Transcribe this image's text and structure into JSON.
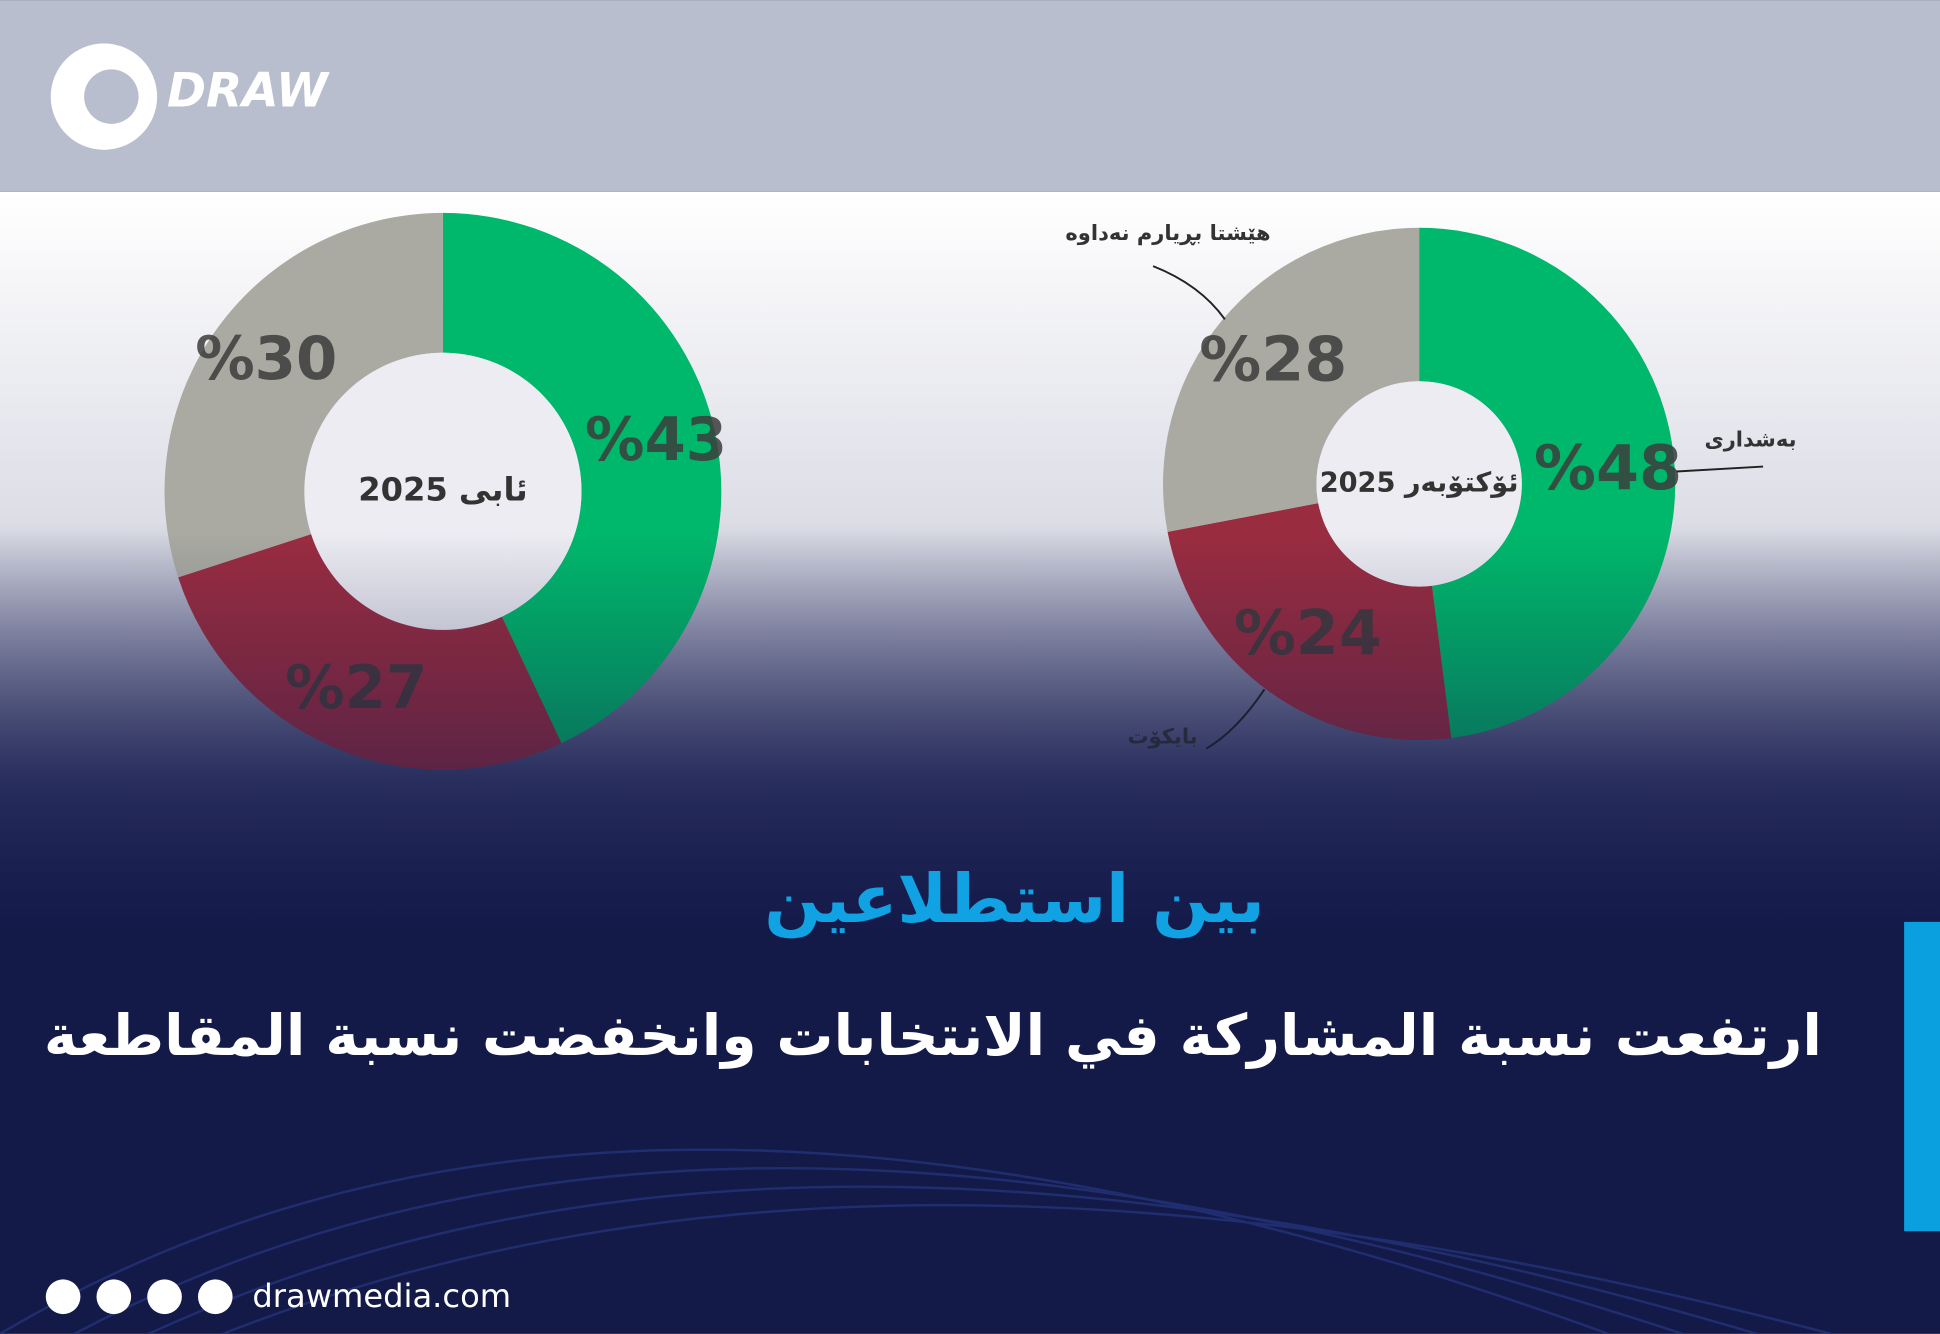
{
  "header": {
    "logo": "DRAW"
  },
  "chart_data": [
    {
      "type": "pie",
      "center_label": "ئابی 2025",
      "categories": [
        null,
        null,
        null
      ],
      "values": [
        43,
        27,
        30
      ],
      "value_labels": [
        "%43",
        "%27",
        "%30"
      ],
      "colors": [
        "#00b86b",
        "#9a2c40",
        "#aaaaa2"
      ]
    },
    {
      "type": "pie",
      "center_label": "ئۆکتۆبەر 2025",
      "categories": [
        "بەشداری",
        "بایکۆت",
        "هێشتا بڕیارم نەداوە"
      ],
      "values": [
        48,
        24,
        28
      ],
      "value_labels": [
        "%48",
        "%24",
        "%28"
      ],
      "colors": [
        "#00b86b",
        "#9a2c40",
        "#aaaaa2"
      ]
    }
  ],
  "headline": {
    "kicker": "بين استطلاعين",
    "title": "ارتفعت نسبة المشاركة في الانتخابات وانخفضت نسبة المقاطعة"
  },
  "footer": {
    "website": "drawmedia.com"
  }
}
